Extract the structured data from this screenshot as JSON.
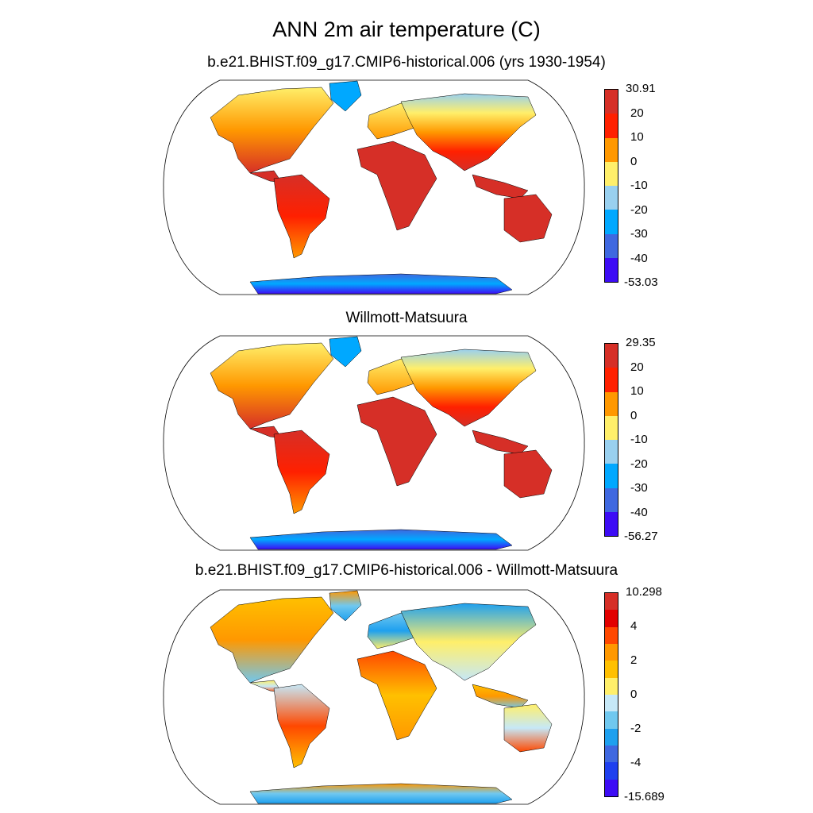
{
  "title": "ANN 2m air temperature (C)",
  "panels": [
    {
      "id": "model",
      "subtitle": "b.e21.BHIST.f09_g17.CMIP6-historical.006 (yrs 1930-1954)",
      "colorbar": {
        "colors": [
          "#d62f27",
          "#ff2000",
          "#ff9800",
          "#ffef6a",
          "#99d0ef",
          "#00a8ff",
          "#3f68e0",
          "#3d0cf5"
        ],
        "labels": [
          "30.91",
          "20",
          "10",
          "0",
          "-10",
          "-20",
          "-30",
          "-40",
          "-53.03"
        ]
      }
    },
    {
      "id": "obs",
      "subtitle": "Willmott-Matsuura",
      "colorbar": {
        "colors": [
          "#d62f27",
          "#ff2000",
          "#ff9800",
          "#ffef6a",
          "#99d0ef",
          "#00a8ff",
          "#3f68e0",
          "#3d0cf5"
        ],
        "labels": [
          "29.35",
          "20",
          "10",
          "0",
          "-10",
          "-20",
          "-30",
          "-40",
          "-56.27"
        ]
      }
    },
    {
      "id": "diff",
      "subtitle": "b.e21.BHIST.f09_g17.CMIP6-historical.006 - Willmott-Matsuura",
      "colorbar": {
        "colors": [
          "#d62f27",
          "#e20000",
          "#ff4800",
          "#ff9800",
          "#ffc000",
          "#ffef6a",
          "#c6e8f7",
          "#70c8ef",
          "#1ea0ef",
          "#3f68e0",
          "#1f40ef",
          "#3d0cf5"
        ],
        "labels": [
          "10.298",
          "",
          "4",
          "",
          "2",
          "",
          "0",
          "",
          "-2",
          "",
          "-4",
          "",
          "-15.689"
        ]
      }
    }
  ]
}
